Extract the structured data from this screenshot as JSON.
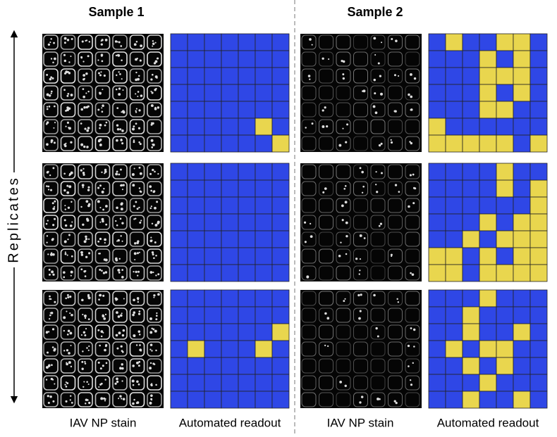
{
  "titles": [
    "Sample 1",
    "Sample 2"
  ],
  "axis_label": "Replicates",
  "column_labels": [
    "IAV NP stain",
    "Automated readout",
    "IAV NP stain",
    "Automated readout"
  ],
  "colors": {
    "negative": "#2f47e6",
    "positive": "#e9d64e"
  },
  "readouts": [
    [
      [
        [
          0,
          0,
          0,
          0,
          0,
          0,
          0
        ],
        [
          0,
          0,
          0,
          0,
          0,
          0,
          0
        ],
        [
          0,
          0,
          0,
          0,
          0,
          0,
          0
        ],
        [
          0,
          0,
          0,
          0,
          0,
          0,
          0
        ],
        [
          0,
          0,
          0,
          0,
          0,
          0,
          0
        ],
        [
          0,
          0,
          0,
          0,
          0,
          1,
          0
        ],
        [
          0,
          0,
          0,
          0,
          0,
          0,
          1
        ]
      ],
      [
        [
          0,
          0,
          0,
          0,
          0,
          0,
          0
        ],
        [
          0,
          0,
          0,
          0,
          0,
          0,
          0
        ],
        [
          0,
          0,
          0,
          0,
          0,
          0,
          0
        ],
        [
          0,
          0,
          0,
          0,
          0,
          0,
          0
        ],
        [
          0,
          0,
          0,
          0,
          0,
          0,
          0
        ],
        [
          0,
          0,
          0,
          0,
          0,
          0,
          0
        ],
        [
          0,
          0,
          0,
          0,
          0,
          0,
          0
        ]
      ],
      [
        [
          0,
          0,
          0,
          0,
          0,
          0,
          0
        ],
        [
          0,
          0,
          0,
          0,
          0,
          0,
          0
        ],
        [
          0,
          0,
          0,
          0,
          0,
          0,
          1
        ],
        [
          0,
          1,
          0,
          0,
          0,
          1,
          0
        ],
        [
          0,
          0,
          0,
          0,
          0,
          0,
          0
        ],
        [
          0,
          0,
          0,
          0,
          0,
          0,
          0
        ],
        [
          0,
          0,
          0,
          0,
          0,
          0,
          0
        ]
      ]
    ],
    [
      [
        [
          0,
          1,
          0,
          0,
          1,
          1,
          0
        ],
        [
          0,
          0,
          0,
          1,
          0,
          1,
          0
        ],
        [
          0,
          0,
          0,
          1,
          1,
          1,
          0
        ],
        [
          0,
          0,
          0,
          1,
          0,
          1,
          0
        ],
        [
          0,
          0,
          0,
          1,
          1,
          0,
          0
        ],
        [
          1,
          0,
          0,
          0,
          0,
          0,
          0
        ],
        [
          1,
          1,
          1,
          1,
          1,
          0,
          1
        ]
      ],
      [
        [
          0,
          0,
          0,
          0,
          1,
          0,
          0
        ],
        [
          0,
          0,
          0,
          0,
          1,
          0,
          1
        ],
        [
          0,
          0,
          0,
          0,
          0,
          0,
          1
        ],
        [
          0,
          0,
          0,
          1,
          0,
          1,
          1
        ],
        [
          0,
          0,
          1,
          0,
          1,
          1,
          1
        ],
        [
          1,
          1,
          0,
          1,
          0,
          1,
          1
        ],
        [
          1,
          1,
          0,
          1,
          1,
          1,
          1
        ]
      ],
      [
        [
          0,
          0,
          0,
          1,
          0,
          0,
          0
        ],
        [
          0,
          0,
          1,
          0,
          0,
          0,
          0
        ],
        [
          0,
          0,
          1,
          0,
          0,
          1,
          0
        ],
        [
          0,
          1,
          0,
          1,
          1,
          0,
          0
        ],
        [
          0,
          0,
          1,
          0,
          1,
          0,
          0
        ],
        [
          0,
          0,
          0,
          1,
          0,
          0,
          0
        ],
        [
          0,
          0,
          1,
          0,
          0,
          1,
          0
        ]
      ]
    ]
  ]
}
